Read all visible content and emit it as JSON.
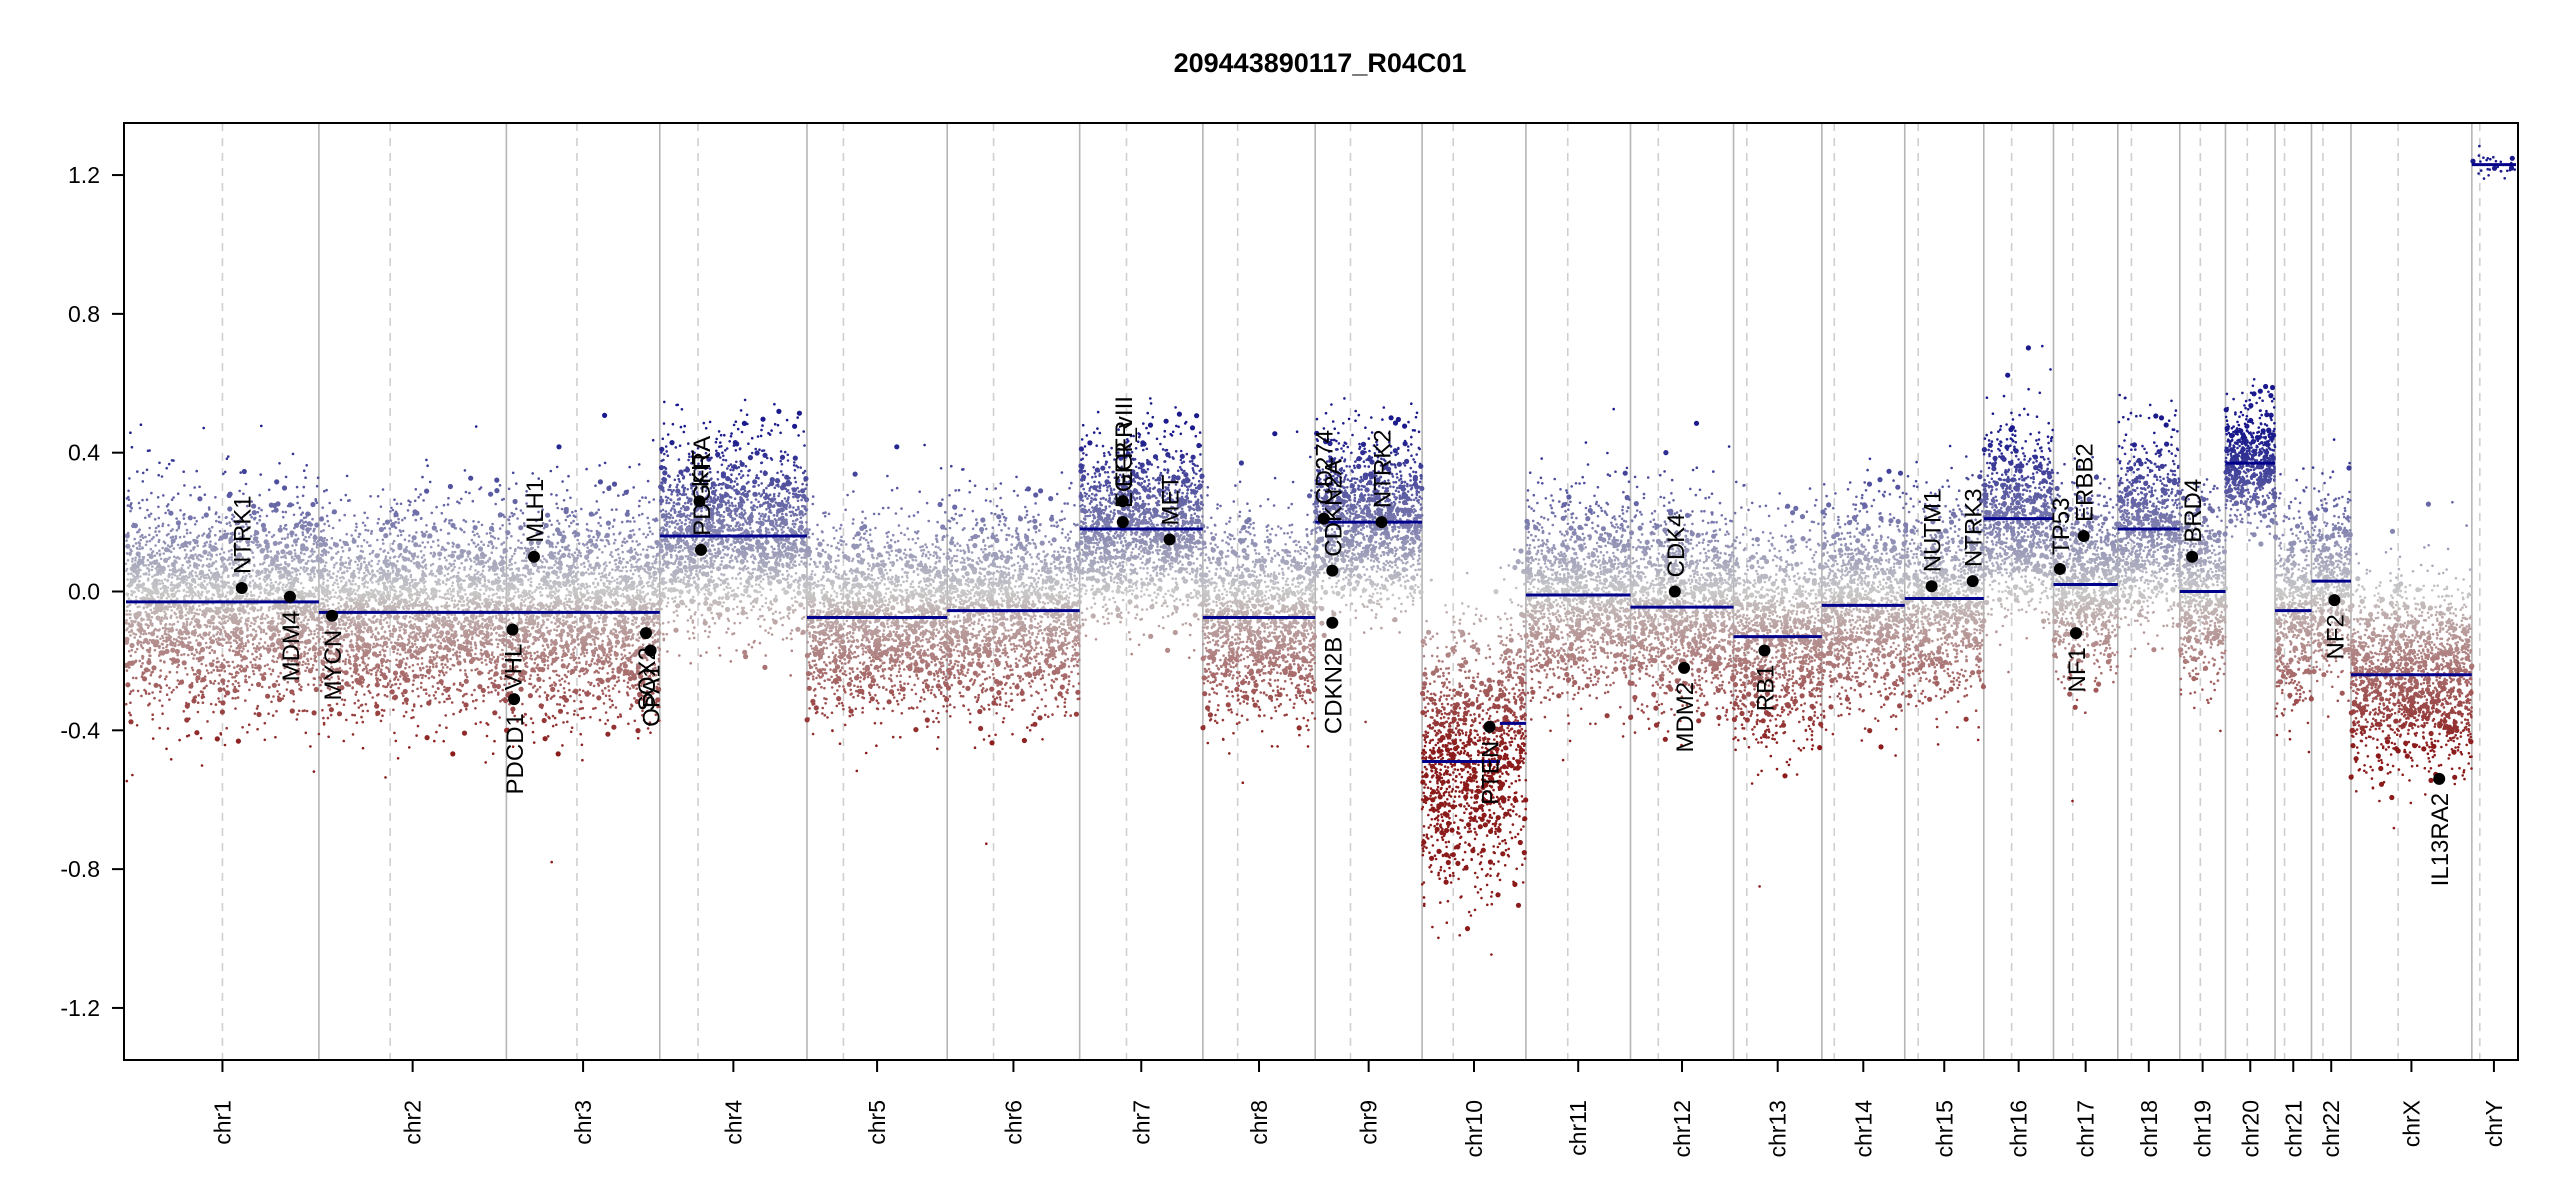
{
  "chart_data": {
    "type": "scatter",
    "title": "209443890117_R04C01",
    "xlabel": "",
    "ylabel": "",
    "ylim": [
      -1.35,
      1.35
    ],
    "yticks": [
      "1.2",
      "0.8",
      "0.4",
      "0.0",
      "-0.4",
      "-0.8",
      "-1.2"
    ],
    "ytick_values": [
      1.2,
      0.8,
      0.4,
      0.0,
      -0.4,
      -0.8,
      -1.2
    ],
    "color_scale": {
      "gain": "#1a1a8c",
      "neutral": "#c8c8c8",
      "loss": "#8b1a1a",
      "segment": "#00008b"
    },
    "chromosomes": [
      {
        "name": "chr1",
        "length": 249,
        "centromere": 0.5
      },
      {
        "name": "chr2",
        "length": 242,
        "centromere": 0.38
      },
      {
        "name": "chr3",
        "length": 198,
        "centromere": 0.46
      },
      {
        "name": "chr4",
        "length": 190,
        "centromere": 0.26
      },
      {
        "name": "chr5",
        "length": 181,
        "centromere": 0.26
      },
      {
        "name": "chr6",
        "length": 171,
        "centromere": 0.35
      },
      {
        "name": "chr7",
        "length": 159,
        "centromere": 0.38
      },
      {
        "name": "chr8",
        "length": 145,
        "centromere": 0.31
      },
      {
        "name": "chr9",
        "length": 138,
        "centromere": 0.33
      },
      {
        "name": "chr10",
        "length": 134,
        "centromere": 0.3
      },
      {
        "name": "chr11",
        "length": 135,
        "centromere": 0.4
      },
      {
        "name": "chr12",
        "length": 133,
        "centromere": 0.27
      },
      {
        "name": "chr13",
        "length": 114,
        "centromere": 0.15
      },
      {
        "name": "chr14",
        "length": 107,
        "centromere": 0.15
      },
      {
        "name": "chr15",
        "length": 102,
        "centromere": 0.17
      },
      {
        "name": "chr16",
        "length": 90,
        "centromere": 0.4
      },
      {
        "name": "chr17",
        "length": 83,
        "centromere": 0.3
      },
      {
        "name": "chr18",
        "length": 80,
        "centromere": 0.22
      },
      {
        "name": "chr19",
        "length": 59,
        "centromere": 0.45
      },
      {
        "name": "chr20",
        "length": 64,
        "centromere": 0.44
      },
      {
        "name": "chr21",
        "length": 47,
        "centromere": 0.26
      },
      {
        "name": "chr22",
        "length": 51,
        "centromere": 0.29
      },
      {
        "name": "chrX",
        "length": 156,
        "centromere": 0.39
      },
      {
        "name": "chrY",
        "length": 57,
        "centromere": 0.18
      }
    ],
    "segments": [
      {
        "chr": "chr1",
        "start": 0,
        "end": 1,
        "mean": -0.03
      },
      {
        "chr": "chr2",
        "start": 0,
        "end": 1,
        "mean": -0.06
      },
      {
        "chr": "chr3",
        "start": 0,
        "end": 1,
        "mean": -0.06
      },
      {
        "chr": "chr4",
        "start": 0,
        "end": 1,
        "mean": 0.16
      },
      {
        "chr": "chr5",
        "start": 0,
        "end": 1,
        "mean": -0.075
      },
      {
        "chr": "chr6",
        "start": 0,
        "end": 1,
        "mean": -0.055
      },
      {
        "chr": "chr7",
        "start": 0,
        "end": 1,
        "mean": 0.18
      },
      {
        "chr": "chr8",
        "start": 0,
        "end": 1,
        "mean": -0.075
      },
      {
        "chr": "chr9",
        "start": 0,
        "end": 0.25,
        "mean": 0.2
      },
      {
        "chr": "chr9",
        "start": 0.25,
        "end": 1,
        "mean": 0.2
      },
      {
        "chr": "chr10",
        "start": 0,
        "end": 0.75,
        "mean": -0.49
      },
      {
        "chr": "chr10",
        "start": 0.75,
        "end": 1,
        "mean": -0.38
      },
      {
        "chr": "chr11",
        "start": 0,
        "end": 1,
        "mean": -0.01
      },
      {
        "chr": "chr12",
        "start": 0,
        "end": 1,
        "mean": -0.045
      },
      {
        "chr": "chr13",
        "start": 0,
        "end": 1,
        "mean": -0.13
      },
      {
        "chr": "chr14",
        "start": 0,
        "end": 1,
        "mean": -0.04
      },
      {
        "chr": "chr15",
        "start": 0,
        "end": 1,
        "mean": -0.02
      },
      {
        "chr": "chr16",
        "start": 0,
        "end": 1,
        "mean": 0.21
      },
      {
        "chr": "chr17",
        "start": 0,
        "end": 1,
        "mean": 0.02
      },
      {
        "chr": "chr18",
        "start": 0,
        "end": 1,
        "mean": 0.18
      },
      {
        "chr": "chr19",
        "start": 0,
        "end": 1,
        "mean": 0.0
      },
      {
        "chr": "chr20",
        "start": 0,
        "end": 1,
        "mean": 0.37
      },
      {
        "chr": "chr21",
        "start": 0,
        "end": 1,
        "mean": -0.055
      },
      {
        "chr": "chr22",
        "start": 0,
        "end": 1,
        "mean": 0.03
      },
      {
        "chr": "chrX",
        "start": 0,
        "end": 1,
        "mean": -0.24
      },
      {
        "chr": "chrY",
        "start": 0,
        "end": 1,
        "mean": 1.23
      }
    ],
    "spread": {
      "chr1": 0.15,
      "chr2": 0.14,
      "chr3": 0.15,
      "chr4": 0.13,
      "chr5": 0.13,
      "chr6": 0.14,
      "chr7": 0.12,
      "chr8": 0.14,
      "chr9": 0.12,
      "chr10": 0.18,
      "chr11": 0.14,
      "chr12": 0.14,
      "chr13": 0.15,
      "chr14": 0.14,
      "chr15": 0.14,
      "chr16": 0.13,
      "chr17": 0.13,
      "chr18": 0.13,
      "chr19": 0.13,
      "chr20": 0.08,
      "chr21": 0.14,
      "chr22": 0.13,
      "chrX": 0.13,
      "chrY": 0.02
    },
    "genes": [
      {
        "name": "NTRK1",
        "chr": "chr1",
        "pos": 0.6,
        "value": 0.01
      },
      {
        "name": "MDM4",
        "chr": "chr1",
        "pos": 0.85,
        "value": -0.015
      },
      {
        "name": "MYCN",
        "chr": "chr2",
        "pos": 0.07,
        "value": -0.07
      },
      {
        "name": "VHL",
        "chr": "chr3",
        "pos": 0.04,
        "value": -0.11
      },
      {
        "name": "PDCD1",
        "chr": "chr3",
        "pos": 0.05,
        "value": -0.31
      },
      {
        "name": "MLH1",
        "chr": "chr3",
        "pos": 0.18,
        "value": 0.1
      },
      {
        "name": "SOX2",
        "chr": "chr3",
        "pos": 0.91,
        "value": -0.12
      },
      {
        "name": "OPA1",
        "chr": "chr3",
        "pos": 0.94,
        "value": -0.17
      },
      {
        "name": "KIT",
        "chr": "chr4",
        "pos": 0.27,
        "value": 0.26
      },
      {
        "name": "PDGFRA",
        "chr": "chr4",
        "pos": 0.28,
        "value": 0.12
      },
      {
        "name": "EGFR",
        "chr": "chr7",
        "pos": 0.35,
        "value": 0.26
      },
      {
        "name": "EGFR_vIII",
        "chr": "chr7",
        "pos": 0.35,
        "value": 0.2
      },
      {
        "name": "MET",
        "chr": "chr7",
        "pos": 0.73,
        "value": 0.15
      },
      {
        "name": "CD274",
        "chr": "chr9",
        "pos": 0.08,
        "value": 0.21
      },
      {
        "name": "CDKN2A",
        "chr": "chr9",
        "pos": 0.16,
        "value": 0.06
      },
      {
        "name": "CDKN2B",
        "chr": "chr9",
        "pos": 0.16,
        "value": -0.09
      },
      {
        "name": "NTRK2",
        "chr": "chr9",
        "pos": 0.62,
        "value": 0.2
      },
      {
        "name": "PTEN",
        "chr": "chr10",
        "pos": 0.65,
        "value": -0.39
      },
      {
        "name": "CDK4",
        "chr": "chr12",
        "pos": 0.43,
        "value": 0.0
      },
      {
        "name": "MDM2",
        "chr": "chr12",
        "pos": 0.52,
        "value": -0.22
      },
      {
        "name": "RB1",
        "chr": "chr13",
        "pos": 0.35,
        "value": -0.17
      },
      {
        "name": "NUTM1",
        "chr": "chr15",
        "pos": 0.34,
        "value": 0.015
      },
      {
        "name": "NTRK3",
        "chr": "chr15",
        "pos": 0.86,
        "value": 0.03
      },
      {
        "name": "TP53",
        "chr": "chr17",
        "pos": 0.1,
        "value": 0.065
      },
      {
        "name": "NF1",
        "chr": "chr17",
        "pos": 0.35,
        "value": -0.12
      },
      {
        "name": "ERBB2",
        "chr": "chr17",
        "pos": 0.47,
        "value": 0.16
      },
      {
        "name": "BRD4",
        "chr": "chr19",
        "pos": 0.27,
        "value": 0.1
      },
      {
        "name": "NF2",
        "chr": "chr22",
        "pos": 0.58,
        "value": -0.025
      },
      {
        "name": "IL13RA2",
        "chr": "chrX",
        "pos": 0.73,
        "value": -0.54
      }
    ]
  }
}
